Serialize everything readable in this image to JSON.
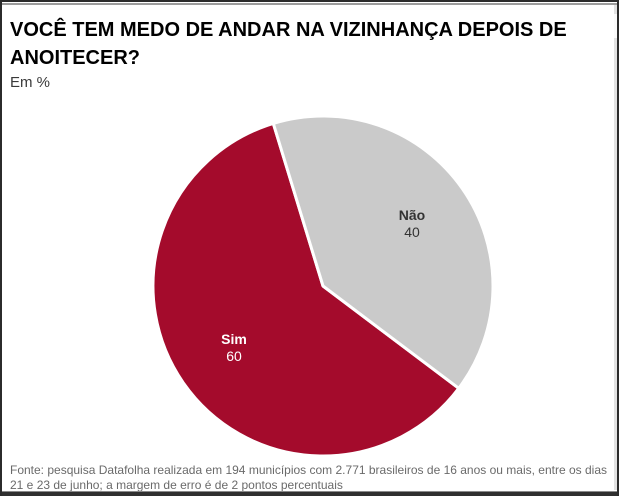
{
  "chart_data": {
    "type": "pie",
    "title": "VOCÊ TEM MEDO DE ANDAR NA VIZINHANÇA DEPOIS DE ANOITECER?",
    "subtitle": "Em %",
    "unit": "%",
    "start_angle_deg": 127,
    "legend_position": "inside-slices",
    "slices": [
      {
        "label": "Sim",
        "value": 60,
        "color": "#A40B2C",
        "label_color": "#FFFFFF"
      },
      {
        "label": "Não",
        "value": 40,
        "color": "#CACACA",
        "label_color": "#333333"
      }
    ],
    "source": "Fonte: pesquisa Datafolha realizada em 194 municípios com 2.771 brasileiros de 16 anos ou mais, entre os dias 21 e 23 de junho; a margem de erro é de 2 pontos percentuais"
  }
}
